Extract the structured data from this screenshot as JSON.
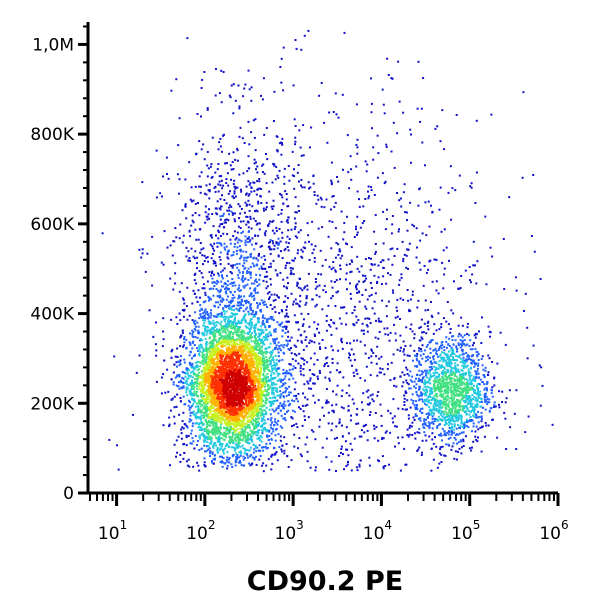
{
  "chart_data": {
    "type": "scatter",
    "subtype": "flow-cytometry-density-plot",
    "title": "",
    "xlabel": "CD90.2  PE",
    "ylabel": "",
    "x_scale": "log",
    "xlim": [
      5,
      1000000
    ],
    "ylim": [
      0,
      1050000
    ],
    "x_ticks": [
      {
        "value": 10,
        "base": "10",
        "exp": "1"
      },
      {
        "value": 100,
        "base": "10",
        "exp": "2"
      },
      {
        "value": 1000,
        "base": "10",
        "exp": "3"
      },
      {
        "value": 10000,
        "base": "10",
        "exp": "4"
      },
      {
        "value": 100000,
        "base": "10",
        "exp": "5"
      },
      {
        "value": 1000000,
        "base": "10",
        "exp": "6"
      }
    ],
    "y_ticks": [
      {
        "value": 0,
        "label": "0"
      },
      {
        "value": 200000,
        "label": "200K"
      },
      {
        "value": 400000,
        "label": "400K"
      },
      {
        "value": 600000,
        "label": "600K"
      },
      {
        "value": 800000,
        "label": "800K"
      },
      {
        "value": 1000000,
        "label": "1,0M"
      }
    ],
    "color_scale": [
      "#1010c8",
      "#2060ff",
      "#20c8e0",
      "#40e080",
      "#c8f020",
      "#ffb000",
      "#ff3000",
      "#d00000"
    ],
    "grid": false,
    "legend": "none",
    "populations": [
      {
        "x_center": 200,
        "y_center": 240000,
        "x_spread_decades": 0.26,
        "y_spread": 75000,
        "weight": 0.55,
        "peak_density": "high"
      },
      {
        "x_center": 220,
        "y_center": 480000,
        "x_spread_decades": 0.35,
        "y_spread": 180000,
        "weight": 0.12,
        "peak_density": "medium"
      },
      {
        "x_center": 60000,
        "y_center": 230000,
        "x_spread_decades": 0.22,
        "y_spread": 60000,
        "weight": 0.15,
        "peak_density": "medium"
      },
      {
        "x_center": 3000,
        "y_center": 350000,
        "x_spread_decades": 0.9,
        "y_spread": 260000,
        "weight": 0.18,
        "peak_density": "low"
      }
    ]
  }
}
